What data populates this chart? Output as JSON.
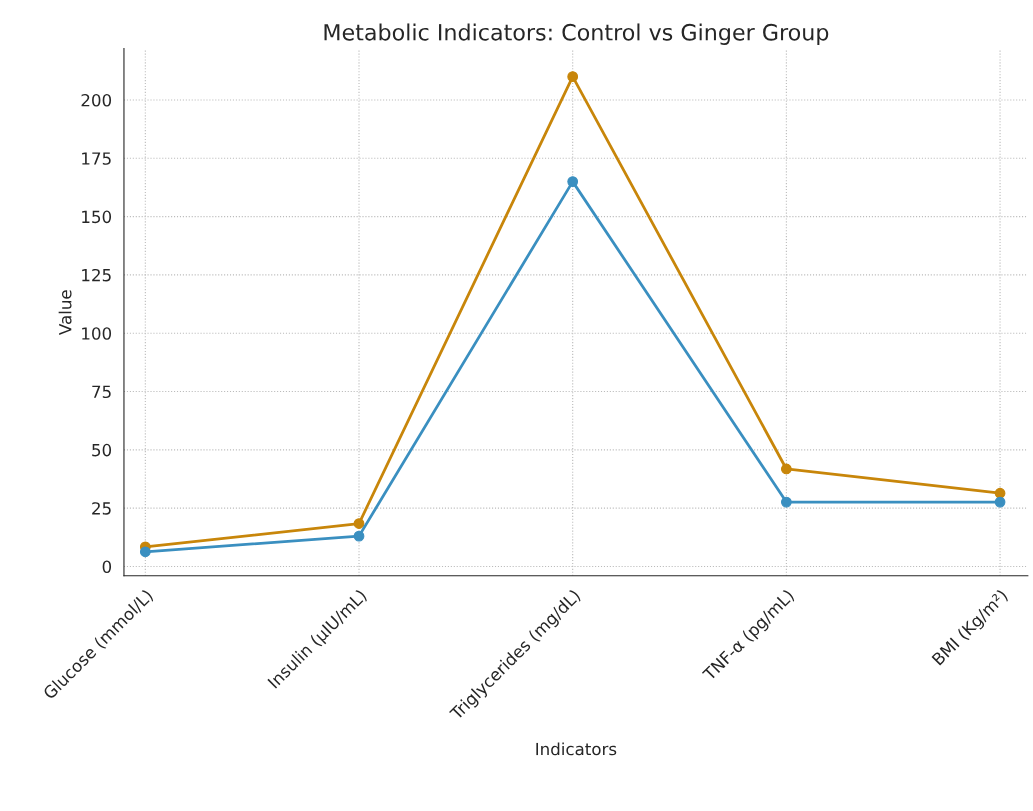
{
  "chart_data": {
    "type": "line",
    "title": "Metabolic Indicators: Control vs Ginger Group",
    "xlabel": "Indicators",
    "ylabel": "Value",
    "categories": [
      "Glucose (mmol/L)",
      "Insulin (µIU/mL)",
      "Triglycerides (mg/dL)",
      "TNF-α (pg/mL)",
      "BMI (Kg/m²)"
    ],
    "series": [
      {
        "color": "#c8860a",
        "values": [
          8.4,
          18.4,
          210,
          41.8,
          31.4
        ]
      },
      {
        "color": "#3a8fc0",
        "values": [
          6.3,
          13,
          165,
          27.6,
          27.6
        ]
      }
    ],
    "ylim": [
      -4,
      222
    ],
    "yticks": [
      0,
      25,
      50,
      75,
      100,
      125,
      150,
      175,
      200
    ],
    "grid": true,
    "marker": "circle",
    "line_style": "solid"
  }
}
